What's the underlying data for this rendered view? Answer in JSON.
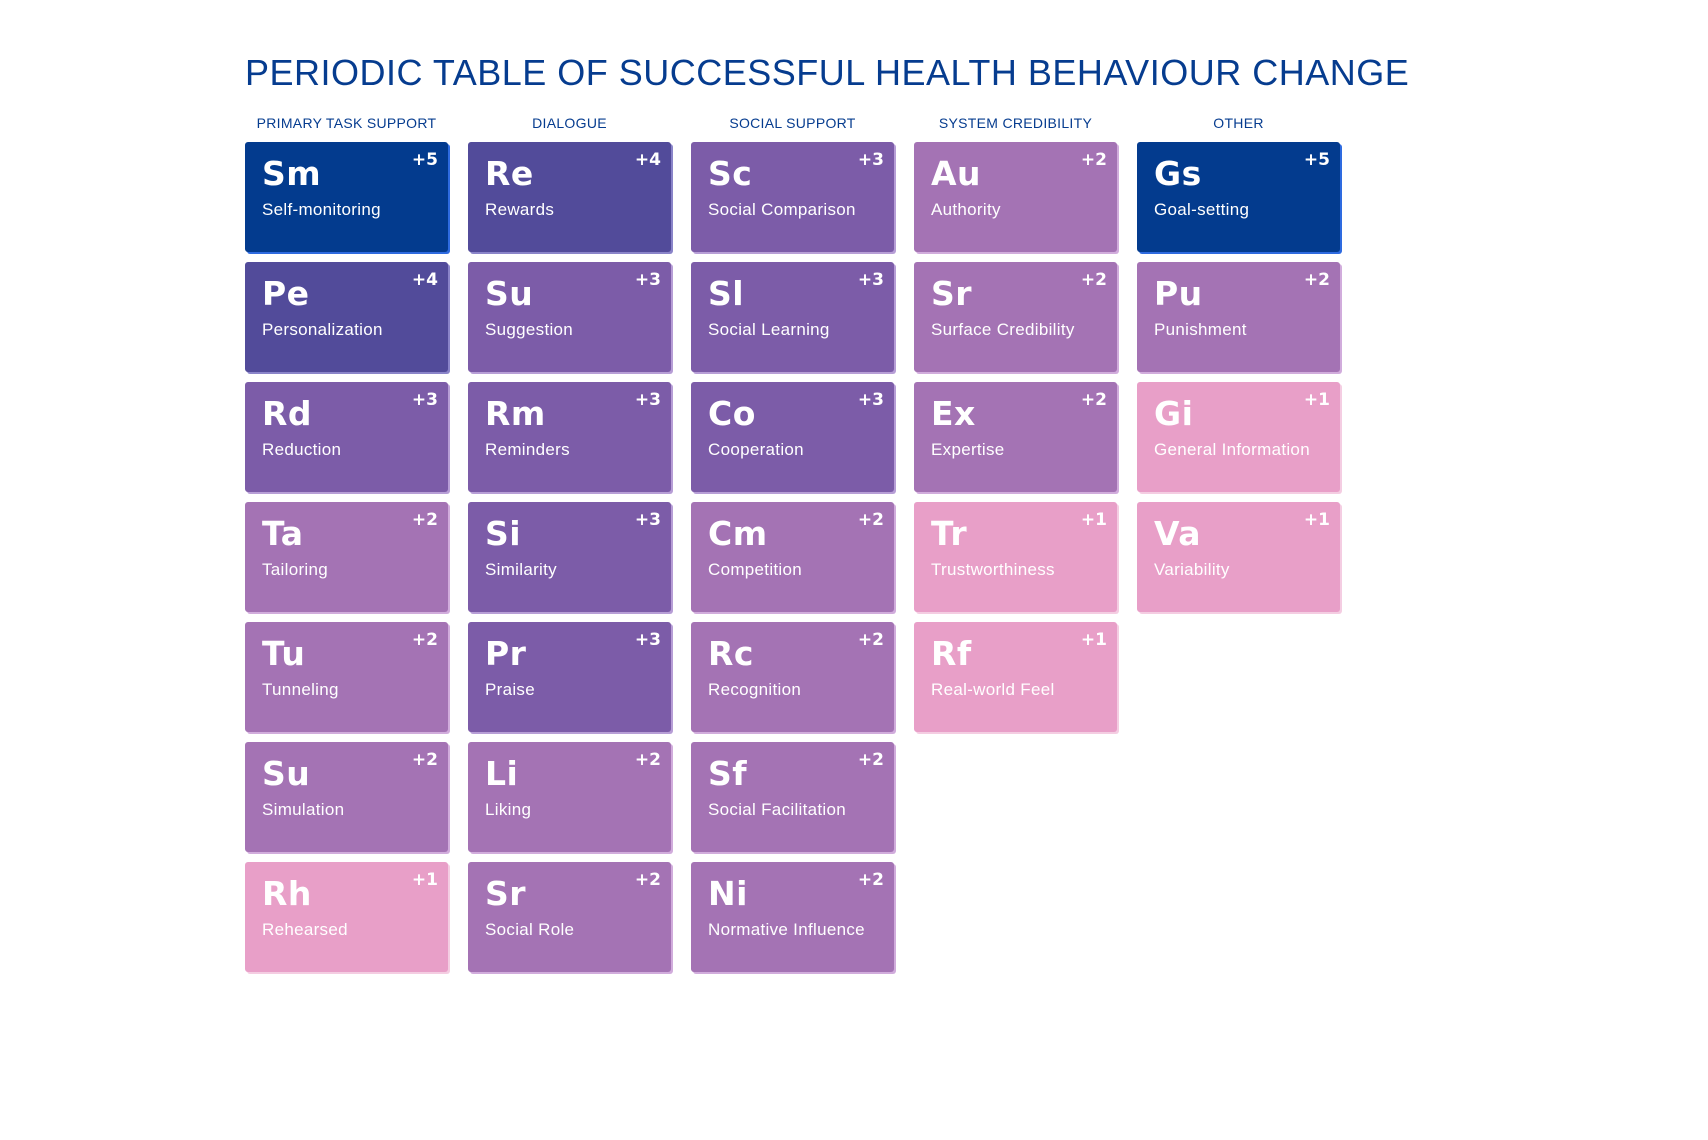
{
  "title": "PERIODIC TABLE OF SUCCESSFUL HEALTH BEHAVIOUR CHANGE",
  "colors": {
    "plus5": "#033b8e",
    "plus4": "#524b9a",
    "plus3": "#7c5ca8",
    "plus2": "#a473b4",
    "plus1": "#e89fc8",
    "heading": "#063c8f"
  },
  "columns": [
    {
      "header": "PRIMARY TASK SUPPORT",
      "tiles": [
        {
          "symbol": "Sm",
          "name": "Self-monitoring",
          "score": "+5",
          "level": 5
        },
        {
          "symbol": "Pe",
          "name": "Personalization",
          "score": "+4",
          "level": 4
        },
        {
          "symbol": "Rd",
          "name": "Reduction",
          "score": "+3",
          "level": 3
        },
        {
          "symbol": "Ta",
          "name": "Tailoring",
          "score": "+2",
          "level": 2
        },
        {
          "symbol": "Tu",
          "name": "Tunneling",
          "score": "+2",
          "level": 2
        },
        {
          "symbol": "Su",
          "name": "Simulation",
          "score": "+2",
          "level": 2
        },
        {
          "symbol": "Rh",
          "name": "Rehearsed",
          "score": "+1",
          "level": 1
        }
      ]
    },
    {
      "header": "DIALOGUE",
      "tiles": [
        {
          "symbol": "Re",
          "name": "Rewards",
          "score": "+4",
          "level": 4
        },
        {
          "symbol": "Su",
          "name": "Suggestion",
          "score": "+3",
          "level": 3
        },
        {
          "symbol": "Rm",
          "name": "Reminders",
          "score": "+3",
          "level": 3
        },
        {
          "symbol": "Si",
          "name": "Similarity",
          "score": "+3",
          "level": 3
        },
        {
          "symbol": "Pr",
          "name": "Praise",
          "score": "+3",
          "level": 3
        },
        {
          "symbol": "Li",
          "name": "Liking",
          "score": "+2",
          "level": 2
        },
        {
          "symbol": "Sr",
          "name": "Social Role",
          "score": "+2",
          "level": 2
        }
      ]
    },
    {
      "header": "SOCIAL SUPPORT",
      "tiles": [
        {
          "symbol": "Sc",
          "name": "Social Comparison",
          "score": "+3",
          "level": 3
        },
        {
          "symbol": "Sl",
          "name": "Social Learning",
          "score": "+3",
          "level": 3
        },
        {
          "symbol": "Co",
          "name": "Cooperation",
          "score": "+3",
          "level": 3
        },
        {
          "symbol": "Cm",
          "name": "Competition",
          "score": "+2",
          "level": 2
        },
        {
          "symbol": "Rc",
          "name": "Recognition",
          "score": "+2",
          "level": 2
        },
        {
          "symbol": "Sf",
          "name": "Social Facilitation",
          "score": "+2",
          "level": 2
        },
        {
          "symbol": "Ni",
          "name": "Normative Influence",
          "score": "+2",
          "level": 2
        }
      ]
    },
    {
      "header": "SYSTEM CREDIBILITY",
      "tiles": [
        {
          "symbol": "Au",
          "name": "Authority",
          "score": "+2",
          "level": 2
        },
        {
          "symbol": "Sr",
          "name": "Surface Credibility",
          "score": "+2",
          "level": 2
        },
        {
          "symbol": "Ex",
          "name": "Expertise",
          "score": "+2",
          "level": 2
        },
        {
          "symbol": "Tr",
          "name": "Trustworthiness",
          "score": "+1",
          "level": 1
        },
        {
          "symbol": "Rf",
          "name": "Real-world Feel",
          "score": "+1",
          "level": 1
        }
      ]
    },
    {
      "header": "OTHER",
      "tiles": [
        {
          "symbol": "Gs",
          "name": "Goal-setting",
          "score": "+5",
          "level": 5
        },
        {
          "symbol": "Pu",
          "name": "Punishment",
          "score": "+2",
          "level": 2
        },
        {
          "symbol": "Gi",
          "name": "General Information",
          "score": "+1",
          "level": 1
        },
        {
          "symbol": "Va",
          "name": "Variability",
          "score": "+1",
          "level": 1
        }
      ]
    }
  ]
}
